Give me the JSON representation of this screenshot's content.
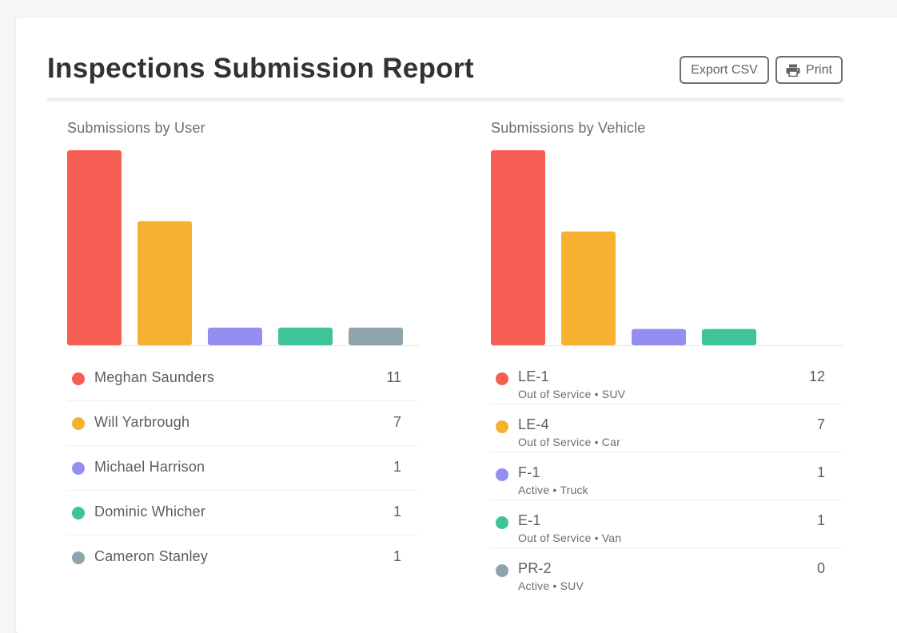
{
  "header": {
    "title": "Inspections Submission Report",
    "export_label": "Export CSV",
    "print_label": "Print",
    "print_icon": "printer-icon"
  },
  "colors": [
    "#f65e53",
    "#f7b131",
    "#938ef0",
    "#3fc39a",
    "#8fa4ad"
  ],
  "chart_data": [
    {
      "type": "bar",
      "title": "Submissions by User",
      "categories": [
        "Meghan Saunders",
        "Will Yarbrough",
        "Michael Harrison",
        "Dominic Whicher",
        "Cameron Stanley"
      ],
      "values": [
        11,
        7,
        1,
        1,
        1
      ],
      "xlabel": "",
      "ylabel": "",
      "grid": false,
      "legend": "bottom"
    },
    {
      "type": "bar",
      "title": "Submissions by Vehicle",
      "categories": [
        "LE-1",
        "LE-4",
        "F-1",
        "E-1",
        "PR-2"
      ],
      "values": [
        12,
        7,
        1,
        1,
        0
      ],
      "xlabel": "",
      "ylabel": "",
      "grid": false,
      "legend": "bottom"
    }
  ],
  "users": [
    {
      "name": "Meghan Saunders",
      "count": "11"
    },
    {
      "name": "Will Yarbrough",
      "count": "7"
    },
    {
      "name": "Michael Harrison",
      "count": "1"
    },
    {
      "name": "Dominic Whicher",
      "count": "1"
    },
    {
      "name": "Cameron Stanley",
      "count": "1"
    }
  ],
  "vehicles": [
    {
      "name": "LE-1",
      "sub": "Out of Service • SUV",
      "count": "12"
    },
    {
      "name": "LE-4",
      "sub": "Out of Service • Car",
      "count": "7"
    },
    {
      "name": "F-1",
      "sub": "Active • Truck",
      "count": "1"
    },
    {
      "name": "E-1",
      "sub": "Out of Service • Van",
      "count": "1"
    },
    {
      "name": "PR-2",
      "sub": "Active • SUV",
      "count": "0"
    }
  ]
}
